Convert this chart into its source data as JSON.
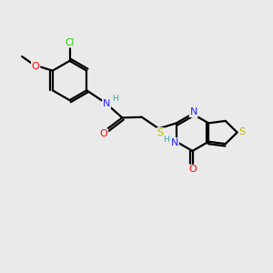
{
  "background_color": "#eaeaea",
  "colors": {
    "C": "#000000",
    "N": "#2020ff",
    "O": "#ff0000",
    "S": "#b8b800",
    "Cl": "#22cc00",
    "H": "#44aaaa",
    "bond": "#000000"
  },
  "figsize": [
    3.0,
    3.0
  ],
  "dpi": 100,
  "xlim": [
    0,
    10
  ],
  "ylim": [
    0,
    10
  ],
  "bond_lw": 1.6,
  "font_size": 8.0
}
